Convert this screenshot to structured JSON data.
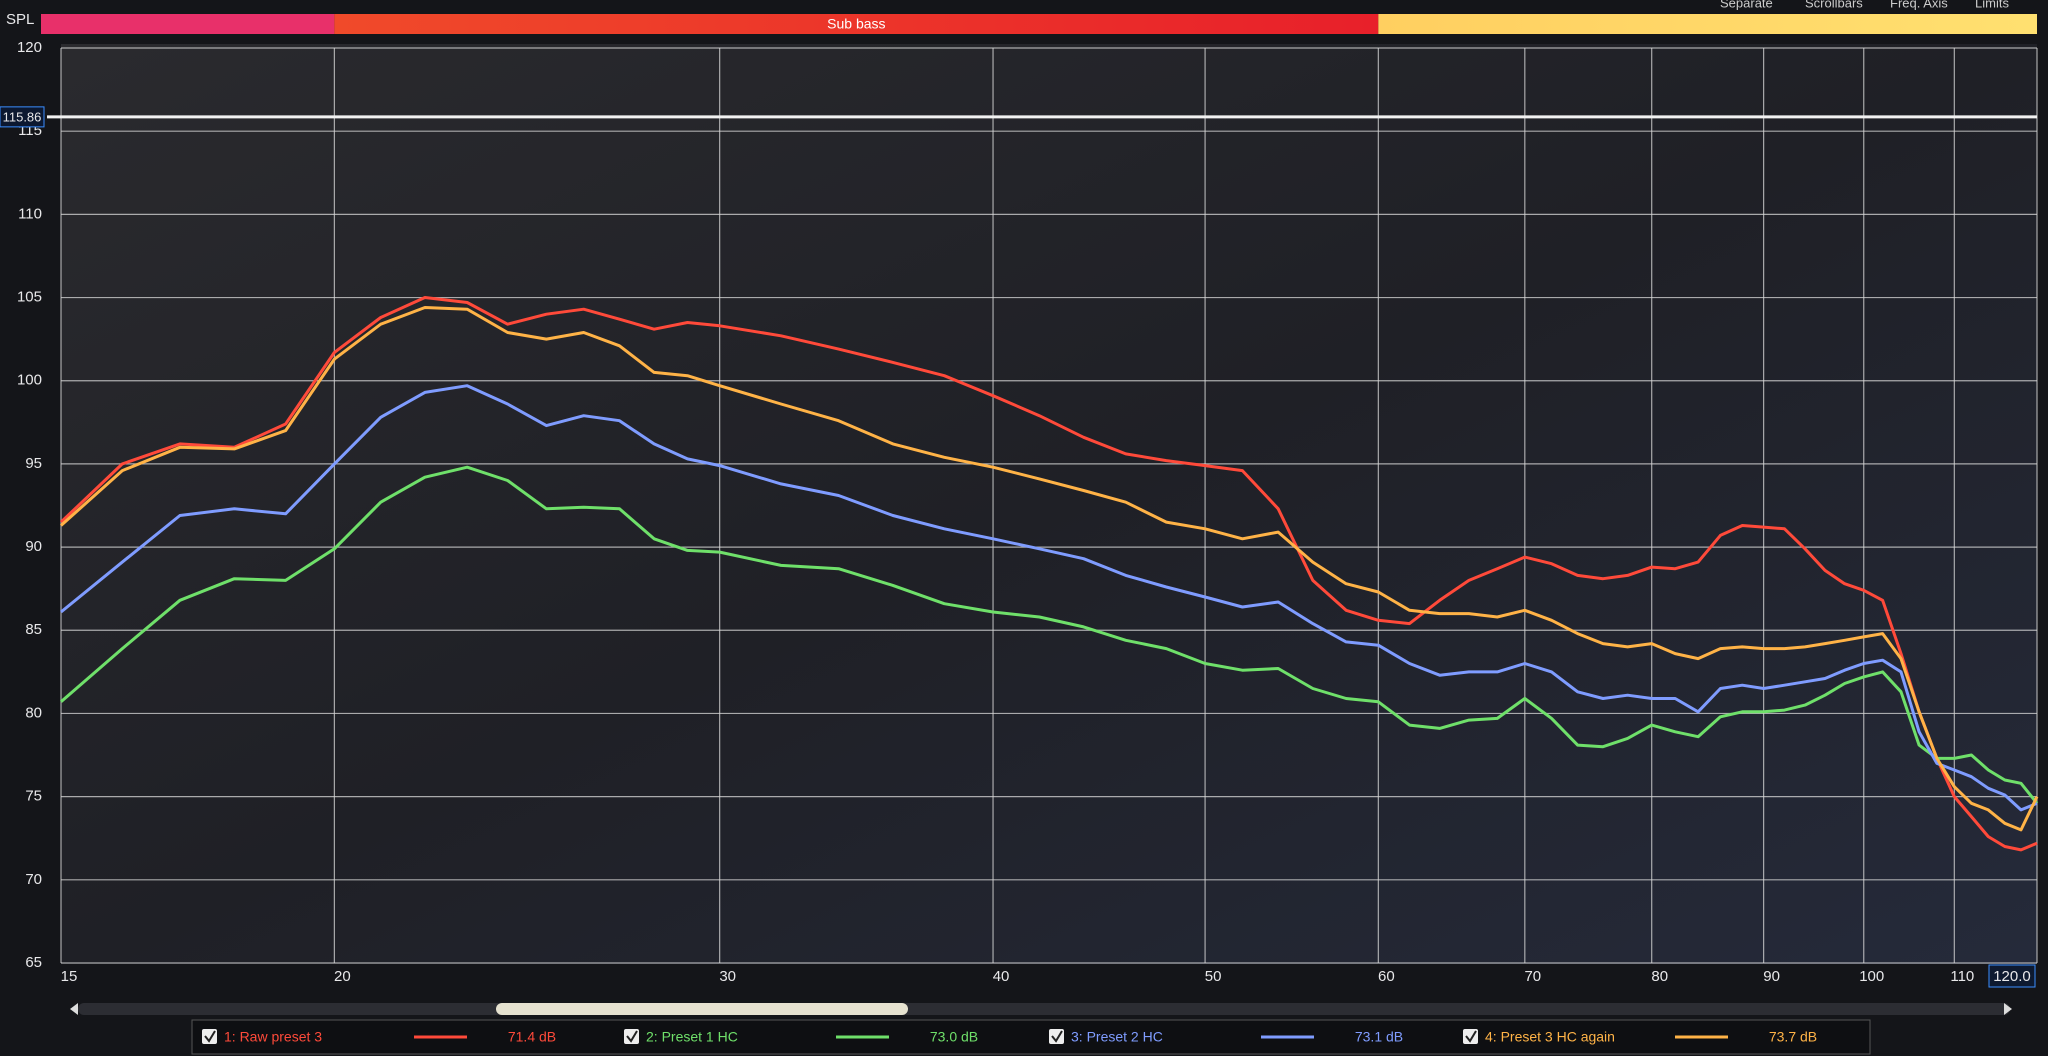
{
  "chart_data": {
    "type": "line",
    "y_label": "SPL",
    "toolbar": [
      "Separate",
      "Scrollbars",
      "Freq. Axis",
      "Limits"
    ],
    "band": {
      "label": "Sub bass",
      "from": 20,
      "to": 60
    },
    "log_x": true,
    "grid": true,
    "xlim": [
      15,
      120
    ],
    "ylim": [
      65,
      120
    ],
    "xticks": [
      15,
      20,
      30,
      40,
      50,
      60,
      70,
      80,
      90,
      100,
      110,
      {
        "value": 120,
        "label": "120.0"
      }
    ],
    "yticks": [
      65,
      70,
      75,
      80,
      85,
      90,
      95,
      100,
      105,
      110,
      115,
      120
    ],
    "cursor_y": 115.86,
    "x": [
      15,
      16,
      17,
      18,
      19,
      20,
      21,
      22,
      23,
      24,
      25,
      26,
      27,
      28,
      29,
      30,
      32,
      34,
      36,
      38,
      40,
      42,
      44,
      46,
      48,
      50,
      52,
      54,
      56,
      58,
      60,
      62,
      64,
      66,
      68,
      70,
      72,
      74,
      76,
      78,
      80,
      82,
      84,
      86,
      88,
      90,
      92,
      94,
      96,
      98,
      100,
      102,
      104,
      106,
      108,
      110,
      112,
      114,
      116,
      118,
      120
    ],
    "series": [
      {
        "name": "1: Raw preset 3",
        "color": "#ff4a3a",
        "level_label": "71.4 dB",
        "values": [
          91.5,
          95.0,
          96.2,
          96.0,
          97.4,
          101.7,
          103.8,
          105.0,
          104.7,
          103.4,
          104.0,
          104.3,
          103.7,
          103.1,
          103.5,
          103.3,
          102.7,
          101.9,
          101.1,
          100.3,
          99.1,
          97.9,
          96.6,
          95.6,
          95.2,
          94.9,
          94.6,
          92.3,
          88.0,
          86.2,
          85.6,
          85.4,
          86.8,
          88.0,
          88.7,
          89.4,
          89.0,
          88.3,
          88.1,
          88.3,
          88.8,
          88.7,
          89.1,
          90.7,
          91.3,
          91.2,
          91.1,
          89.9,
          88.6,
          87.8,
          87.4,
          86.8,
          83.6,
          80.1,
          77.3,
          75.0,
          73.8,
          72.6,
          72.0,
          71.8,
          72.2
        ]
      },
      {
        "name": "2: Preset 1 HC",
        "color": "#6fe06a",
        "level_label": "73.0 dB",
        "values": [
          80.7,
          83.9,
          86.8,
          88.1,
          88.0,
          89.9,
          92.7,
          94.2,
          94.8,
          94.0,
          92.3,
          92.4,
          92.3,
          90.5,
          89.8,
          89.7,
          88.9,
          88.7,
          87.7,
          86.6,
          86.1,
          85.8,
          85.2,
          84.4,
          83.9,
          83.0,
          82.6,
          82.7,
          81.5,
          80.9,
          80.7,
          79.3,
          79.1,
          79.6,
          79.7,
          80.9,
          79.7,
          78.1,
          78.0,
          78.5,
          79.3,
          78.9,
          78.6,
          79.8,
          80.1,
          80.1,
          80.2,
          80.5,
          81.1,
          81.8,
          82.2,
          82.5,
          81.3,
          78.1,
          77.3,
          77.3,
          77.5,
          76.6,
          76.0,
          75.8,
          74.6
        ]
      },
      {
        "name": "3: Preset 2 HC",
        "color": "#7f9cff",
        "level_label": "73.1 dB",
        "values": [
          86.1,
          89.1,
          91.9,
          92.3,
          92.0,
          95.0,
          97.8,
          99.3,
          99.7,
          98.6,
          97.3,
          97.9,
          97.6,
          96.2,
          95.3,
          94.9,
          93.8,
          93.1,
          91.9,
          91.1,
          90.5,
          89.9,
          89.3,
          88.3,
          87.6,
          87.0,
          86.4,
          86.7,
          85.4,
          84.3,
          84.1,
          83.0,
          82.3,
          82.5,
          82.5,
          83.0,
          82.5,
          81.3,
          80.9,
          81.1,
          80.9,
          80.9,
          80.1,
          81.5,
          81.7,
          81.5,
          81.7,
          81.9,
          82.1,
          82.6,
          83.0,
          83.2,
          82.5,
          78.9,
          77.0,
          76.6,
          76.2,
          75.5,
          75.1,
          74.2,
          74.6
        ]
      },
      {
        "name": "4: Preset 3 HC again",
        "color": "#ffb347",
        "level_label": "73.7 dB",
        "values": [
          91.3,
          94.6,
          96.0,
          95.9,
          97.0,
          101.3,
          103.4,
          104.4,
          104.3,
          102.9,
          102.5,
          102.9,
          102.1,
          100.5,
          100.3,
          99.7,
          98.6,
          97.6,
          96.2,
          95.4,
          94.8,
          94.1,
          93.4,
          92.7,
          91.5,
          91.1,
          90.5,
          90.9,
          89.1,
          87.8,
          87.3,
          86.2,
          86.0,
          86.0,
          85.8,
          86.2,
          85.6,
          84.8,
          84.2,
          84.0,
          84.2,
          83.6,
          83.3,
          83.9,
          84.0,
          83.9,
          83.9,
          84.0,
          84.2,
          84.4,
          84.6,
          84.8,
          83.3,
          80.1,
          77.3,
          75.6,
          74.6,
          74.2,
          73.4,
          73.0,
          75.0
        ]
      }
    ]
  }
}
